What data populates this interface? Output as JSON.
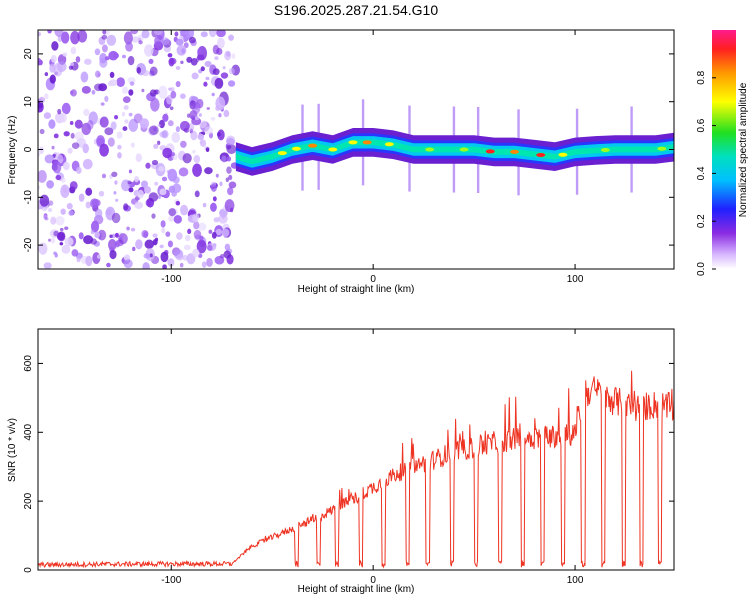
{
  "title": "S196.2025.287.21.54.G10",
  "chart_data": [
    {
      "type": "heatmap",
      "title": "S196.2025.287.21.54.G10",
      "xlabel": "Height of straight line (km)",
      "ylabel": "Frequency (Hz)",
      "xlim": [
        -166,
        149
      ],
      "ylim": [
        -25,
        25
      ],
      "xticks": [
        -100,
        0,
        100
      ],
      "yticks": [
        -20,
        -10,
        0,
        10,
        20
      ],
      "noise_region_x": [
        -166,
        -68
      ],
      "trace": {
        "x": [
          -68,
          -60,
          -50,
          -40,
          -30,
          -20,
          -10,
          0,
          10,
          20,
          30,
          40,
          50,
          60,
          70,
          80,
          90,
          100,
          110,
          120,
          130,
          140,
          149
        ],
        "freq_hz": [
          -1.5,
          -2.5,
          -1.5,
          0,
          0.8,
          0,
          1.5,
          1.5,
          1,
          0,
          0,
          0,
          0,
          -0.5,
          -0.5,
          -1,
          -1.5,
          -0.5,
          -0.2,
          0,
          0,
          0,
          0.5
        ]
      },
      "colorbar": {
        "label": "Normalized spectral amplitude",
        "min": 0.0,
        "max": 1.0,
        "ticks": [
          0.0,
          0.2,
          0.4,
          0.6,
          0.8
        ],
        "tick_labels": [
          "0.0",
          "0.2",
          "0.4",
          "0.6",
          "0.8"
        ]
      }
    },
    {
      "type": "line",
      "xlabel": "Height of straight line (km)",
      "ylabel": "SNR (10 * v/v)",
      "xlim": [
        -166,
        149
      ],
      "ylim": [
        0,
        700
      ],
      "xticks": [
        -100,
        0,
        100
      ],
      "yticks": [
        0,
        200,
        400,
        600
      ],
      "color": "#ee3322",
      "envelope_x": [
        -166,
        -130,
        -70,
        -60,
        -50,
        -40,
        -30,
        -20,
        -10,
        0,
        10,
        20,
        30,
        40,
        50,
        60,
        70,
        80,
        90,
        100,
        105,
        110,
        120,
        130,
        140,
        149
      ],
      "envelope_y": [
        15,
        17,
        18,
        70,
        95,
        120,
        145,
        175,
        205,
        240,
        275,
        300,
        320,
        345,
        355,
        370,
        380,
        385,
        390,
        395,
        520,
        520,
        490,
        470,
        480,
        470
      ],
      "dropout_x": [
        -38,
        -27,
        -18,
        -6,
        5,
        17,
        27,
        39,
        51,
        63,
        74,
        84,
        94,
        104,
        114,
        124,
        133,
        142
      ]
    }
  ]
}
